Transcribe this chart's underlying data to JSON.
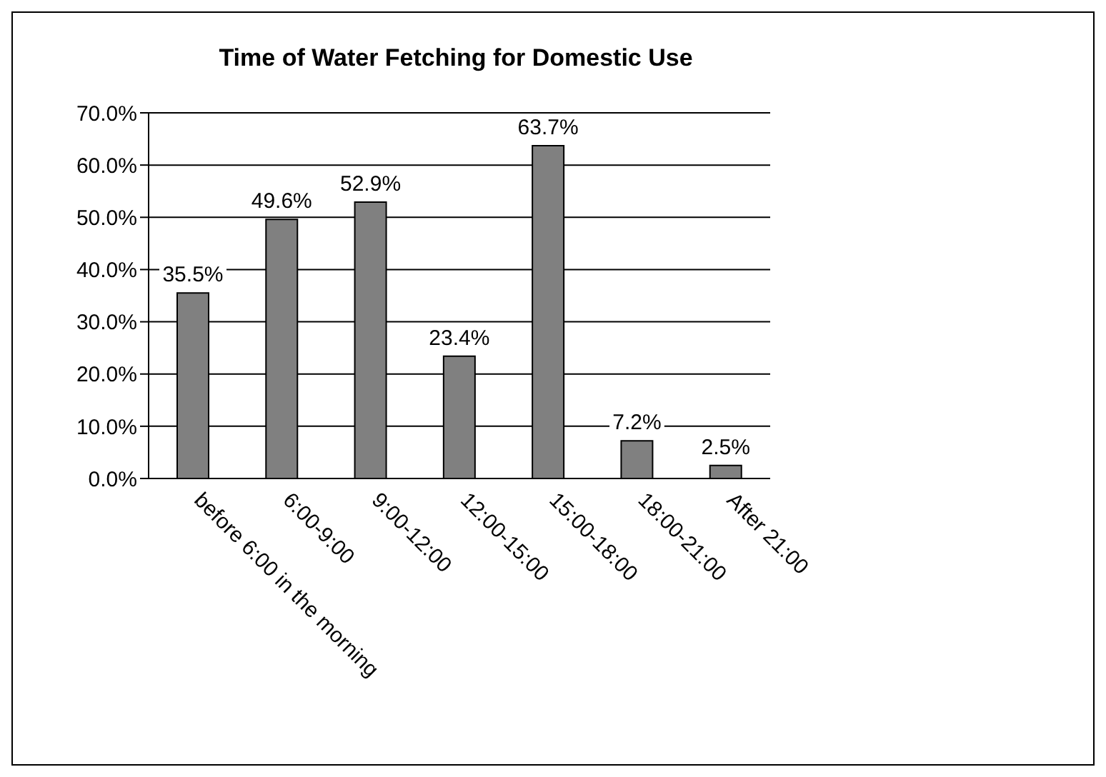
{
  "chart_data": {
    "type": "bar",
    "title": "Time of Water Fetching for Domestic Use",
    "categories": [
      "before 6:00 in the morning",
      "6:00-9:00",
      "9:00-12:00",
      "12:00-15:00",
      "15:00-18:00",
      "18:00-21:00",
      "After 21:00"
    ],
    "values": [
      35.5,
      49.6,
      52.9,
      23.4,
      63.7,
      7.2,
      2.5
    ],
    "value_labels": [
      "35.5%",
      "49.6%",
      "52.9%",
      "23.4%",
      "63.7%",
      "7.2%",
      "2.5%"
    ],
    "color": "#808080",
    "ylim": [
      0,
      70
    ],
    "yticks": [
      {
        "value": 0,
        "label": "0.0%"
      },
      {
        "value": 10,
        "label": "10.0%"
      },
      {
        "value": 20,
        "label": "20.0%"
      },
      {
        "value": 30,
        "label": "30.0%"
      },
      {
        "value": 40,
        "label": "40.0%"
      },
      {
        "value": 50,
        "label": "50.0%"
      },
      {
        "value": 60,
        "label": "60.0%"
      },
      {
        "value": 70,
        "label": "70.0%"
      }
    ],
    "grid": "y"
  }
}
